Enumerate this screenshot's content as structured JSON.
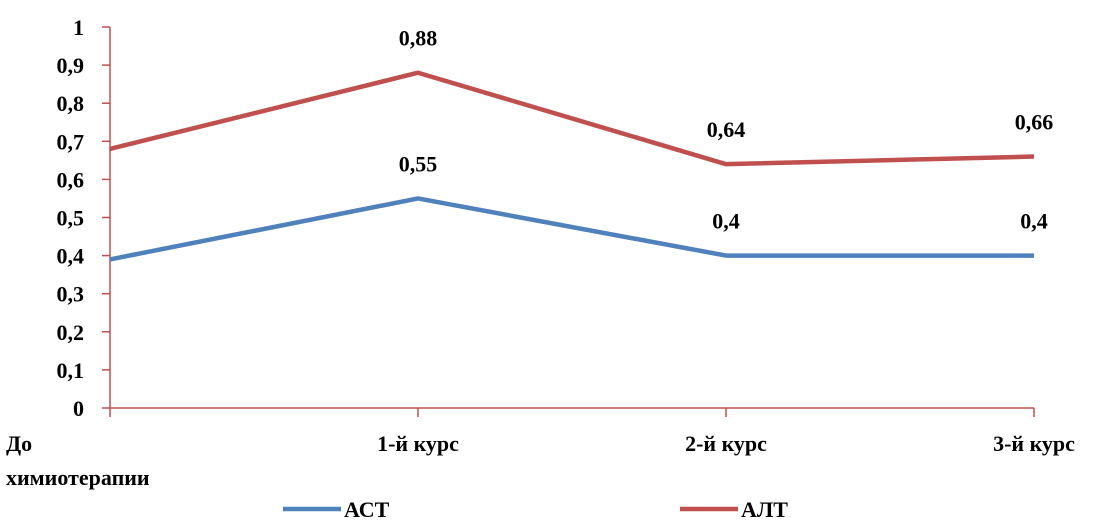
{
  "chart_data": {
    "type": "line",
    "categories": [
      "До химиотерапии",
      "1-й курс",
      "2-й курс",
      "3-й курс"
    ],
    "category_lines": [
      [
        "До",
        "химиотерапии"
      ],
      [
        "1-й курс"
      ],
      [
        "2-й курс"
      ],
      [
        "3-й курс"
      ]
    ],
    "series": [
      {
        "name": "АСТ",
        "values": [
          0.39,
          0.55,
          0.4,
          0.4
        ],
        "labels": [
          "",
          "0,55",
          "0,4",
          "0,4"
        ],
        "color": "#4f81bd"
      },
      {
        "name": "АЛТ",
        "values": [
          0.68,
          0.88,
          0.64,
          0.66
        ],
        "labels": [
          "",
          "0,88",
          "0,64",
          "0,66"
        ],
        "color": "#c0504d"
      }
    ],
    "yticks": [
      "0",
      "0,1",
      "0,2",
      "0,3",
      "0,4",
      "0,5",
      "0,6",
      "0,7",
      "0,8",
      "0,9",
      "1"
    ],
    "ylim": [
      0,
      1
    ],
    "axis_color": "#c0504d",
    "grid": false,
    "legend_position": "bottom"
  }
}
